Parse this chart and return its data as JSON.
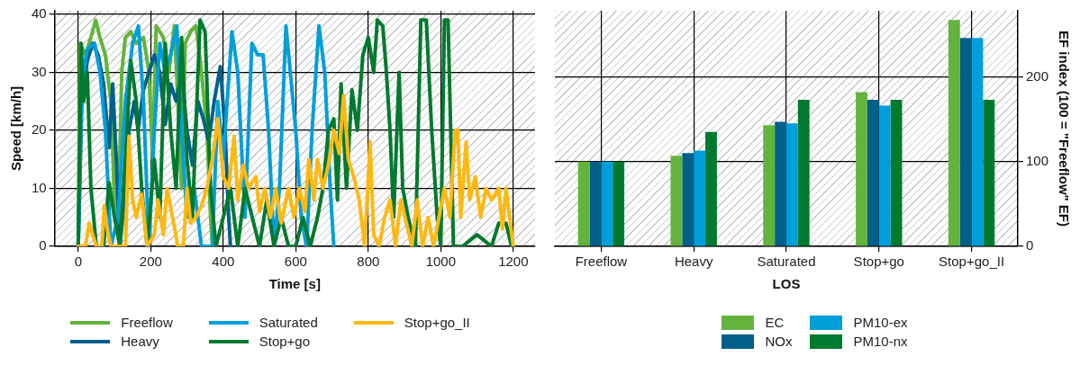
{
  "chart_data": [
    {
      "type": "line",
      "xlabel": "Time [s]",
      "ylabel": "Speed [km/h]",
      "xlim": [
        -65,
        1260
      ],
      "ylim": [
        0,
        40.6
      ],
      "xticks": [
        0,
        200,
        400,
        600,
        800,
        1000,
        1200
      ],
      "yticks": [
        0,
        10,
        20,
        30,
        40
      ],
      "grid": true,
      "legend": "bottom",
      "marker": "none",
      "line_style": "solid",
      "series": [
        {
          "name": "Freeflow",
          "color": "#63b33c",
          "x": [
            0,
            5,
            20,
            35,
            48,
            60,
            75,
            90,
            100,
            110,
            120,
            130,
            145,
            160,
            180,
            195,
            205,
            215,
            235,
            250,
            265,
            275,
            285,
            295,
            310,
            325,
            340,
            355,
            365,
            370
          ],
          "values": [
            0,
            35,
            33,
            36,
            39,
            36,
            33,
            25,
            8,
            3,
            30,
            36,
            37,
            35,
            36,
            30,
            15,
            38,
            36,
            30,
            38,
            25,
            10,
            35,
            37,
            38,
            30,
            20,
            5,
            0
          ]
        },
        {
          "name": "Heavy",
          "color": "#00608a",
          "x": [
            0,
            10,
            25,
            40,
            55,
            70,
            85,
            95,
            105,
            115,
            130,
            140,
            155,
            165,
            180,
            195,
            210,
            225,
            240,
            255,
            270,
            285,
            300,
            315,
            330,
            345,
            360,
            375,
            392,
            405,
            415,
            420
          ],
          "values": [
            0,
            25,
            32,
            35,
            33,
            28,
            17,
            28,
            15,
            0,
            10,
            20,
            25,
            20,
            27,
            30,
            33,
            30,
            21,
            28,
            25,
            30,
            20,
            14,
            25,
            22,
            18,
            25,
            31,
            20,
            5,
            0
          ]
        },
        {
          "name": "Saturated",
          "color": "#009fda",
          "x": [
            0,
            10,
            25,
            45,
            60,
            75,
            90,
            110,
            130,
            150,
            166,
            180,
            195,
            210,
            225,
            240,
            255,
            272,
            285,
            300,
            320,
            340,
            370,
            385,
            400,
            424,
            440,
            460,
            479,
            495,
            510,
            525,
            540,
            555,
            573,
            585,
            600,
            615,
            630,
            645,
            664,
            680,
            695,
            705
          ],
          "values": [
            0,
            28,
            34,
            35,
            30,
            20,
            0,
            5,
            25,
            35,
            38,
            25,
            0,
            20,
            35,
            30,
            33,
            38,
            20,
            5,
            10,
            0,
            0,
            25,
            15,
            37,
            30,
            5,
            35,
            33,
            33,
            20,
            0,
            10,
            38,
            30,
            20,
            5,
            0,
            20,
            38,
            30,
            10,
            0
          ]
        },
        {
          "name": "Stop+go",
          "color": "#007a2f",
          "x": [
            0,
            8,
            15,
            25,
            35,
            50,
            70,
            85,
            100,
            115,
            130,
            145,
            160,
            175,
            190,
            210,
            225,
            240,
            255,
            270,
            285,
            300,
            315,
            336,
            350,
            365,
            380,
            400,
            420,
            440,
            460,
            480,
            500,
            520,
            540,
            560,
            580,
            600,
            620,
            640,
            660,
            675,
            690,
            705,
            715,
            725,
            740,
            755,
            770,
            785,
            800,
            815,
            825,
            840,
            850,
            860,
            870,
            885,
            895,
            910,
            930,
            945,
            960,
            975,
            990,
            1000,
            1010,
            1020,
            1035,
            1060,
            1100,
            1140,
            1160,
            1180,
            1195
          ],
          "values": [
            0,
            35,
            25,
            30,
            10,
            0,
            0,
            11,
            5,
            0,
            15,
            32,
            25,
            10,
            0,
            15,
            5,
            35,
            20,
            10,
            36,
            15,
            5,
            39,
            37,
            10,
            0,
            5,
            10,
            0,
            10,
            5,
            0,
            8,
            0,
            5,
            0,
            0,
            5,
            0,
            5,
            10,
            20,
            22,
            8,
            28,
            10,
            27,
            20,
            33,
            36,
            30,
            39,
            38,
            30,
            20,
            5,
            30,
            10,
            5,
            0,
            39,
            39,
            20,
            5,
            0,
            39,
            39,
            0,
            0,
            2,
            0,
            4,
            4,
            0
          ]
        },
        {
          "name": "Stop+go_II",
          "color": "#fdb913",
          "x": [
            0,
            20,
            30,
            40,
            50,
            65,
            72,
            80,
            90,
            130,
            140,
            150,
            160,
            175,
            190,
            210,
            220,
            235,
            245,
            260,
            275,
            290,
            300,
            310,
            325,
            340,
            355,
            370,
            385,
            400,
            415,
            430,
            440,
            455,
            470,
            490,
            500,
            515,
            530,
            545,
            560,
            580,
            595,
            610,
            625,
            636,
            650,
            660,
            675,
            690,
            705,
            720,
            732,
            745,
            760,
            775,
            790,
            805,
            815,
            830,
            845,
            860,
            875,
            890,
            905,
            920,
            935,
            950,
            965,
            980,
            995,
            1010,
            1025,
            1040,
            1047,
            1055,
            1070,
            1080,
            1095,
            1110,
            1125,
            1140,
            1160,
            1170,
            1180,
            1190,
            1200
          ],
          "values": [
            0,
            0,
            4,
            2,
            0,
            0,
            7,
            3,
            0,
            0,
            19,
            8,
            5,
            9,
            0,
            2,
            8,
            2,
            10,
            5,
            0,
            0,
            10,
            4,
            5,
            7,
            10,
            15,
            22,
            12,
            10,
            19,
            8,
            14,
            10,
            12,
            6,
            10,
            5,
            10,
            4,
            10,
            5,
            10,
            6,
            15,
            8,
            15,
            10,
            14,
            20,
            16,
            26,
            15,
            12,
            8,
            0,
            18,
            2,
            0,
            5,
            8,
            0,
            8,
            4,
            0,
            8,
            0,
            5,
            0,
            5,
            10,
            5,
            20,
            20,
            5,
            18,
            8,
            12,
            5,
            10,
            8,
            10,
            3,
            10,
            5,
            0
          ]
        }
      ]
    },
    {
      "type": "bar",
      "xlabel": "LOS",
      "y2label": "EF index (100 = \"Freeflow\" EF)",
      "categories": [
        "Freeflow",
        "Heavy",
        "Saturated",
        "Stop+go",
        "Stop+go_II"
      ],
      "y2lim": [
        0,
        278
      ],
      "y2ticks": [
        0,
        100,
        200
      ],
      "grid": true,
      "legend": "bottom",
      "series": [
        {
          "name": "EC",
          "color": "#63b33c",
          "axis": "y2",
          "values": [
            100,
            107,
            143,
            182,
            267
          ]
        },
        {
          "name": "NOx",
          "color": "#00608a",
          "axis": "y2",
          "values": [
            100,
            110,
            147,
            173,
            246
          ]
        },
        {
          "name": "PM10-ex",
          "color": "#009fda",
          "axis": "y2",
          "values": [
            100,
            113,
            145,
            166,
            246
          ]
        },
        {
          "name": "PM10-nx",
          "color": "#007a2f",
          "axis": "y2",
          "values": [
            100,
            135,
            173,
            173,
            173
          ]
        }
      ]
    }
  ]
}
